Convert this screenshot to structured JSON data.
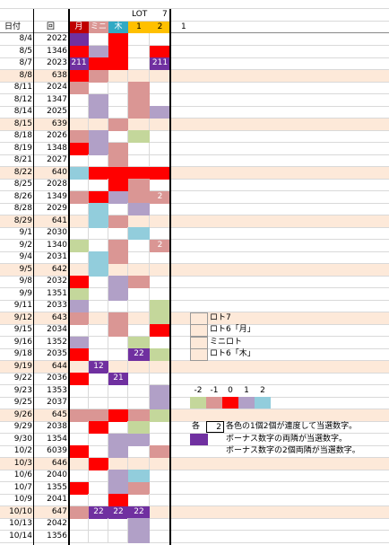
{
  "header": {
    "lot": "LOT",
    "seven": "7",
    "cols": [
      "日付",
      "回",
      "月",
      "ミニ",
      "木",
      "1",
      "2",
      "1"
    ]
  },
  "rows": [
    {
      "date": "8/4",
      "num": "2022",
      "cells": [
        "#7030a0",
        null,
        "#ff0000",
        null,
        null
      ]
    },
    {
      "date": "8/5",
      "num": "1346",
      "cells": [
        "#ff0000",
        "#b1a0c7",
        "#ff0000",
        null,
        "#ff0000"
      ]
    },
    {
      "date": "8/7",
      "num": "2023",
      "cells": [
        {
          "color": "#7030a0",
          "text": "211"
        },
        "#ff0000",
        "#ff0000",
        null,
        {
          "color": "#7030a0",
          "text": "211"
        }
      ]
    },
    {
      "date": "8/8",
      "num": "638",
      "bg": "#fde9d9",
      "cells": [
        "#ff0000",
        "#da9694",
        null,
        null,
        null
      ]
    },
    {
      "date": "8/11",
      "num": "2024",
      "cells": [
        "#da9694",
        null,
        null,
        "#da9694",
        null
      ]
    },
    {
      "date": "8/12",
      "num": "1347",
      "cells": [
        null,
        "#b1a0c7",
        null,
        "#da9694",
        null
      ]
    },
    {
      "date": "8/14",
      "num": "2025",
      "cells": [
        null,
        "#b1a0c7",
        null,
        "#da9694",
        "#b1a0c7"
      ]
    },
    {
      "date": "8/15",
      "num": "639",
      "bg": "#fde9d9",
      "cells": [
        null,
        null,
        "#da9694",
        null,
        null
      ]
    },
    {
      "date": "8/18",
      "num": "2026",
      "cells": [
        "#da9694",
        "#b1a0c7",
        null,
        "#c4d79b",
        null
      ]
    },
    {
      "date": "8/19",
      "num": "1348",
      "cells": [
        "#ff0000",
        "#b1a0c7",
        "#da9694",
        null,
        null
      ]
    },
    {
      "date": "8/21",
      "num": "2027",
      "cells": [
        null,
        null,
        "#da9694",
        null,
        null
      ]
    },
    {
      "date": "8/22",
      "num": "640",
      "bg": "#fde9d9",
      "cells": [
        "#92cddc",
        "#ff0000",
        "#ff0000",
        "#ff0000",
        "#ff0000"
      ]
    },
    {
      "date": "8/25",
      "num": "2028",
      "cells": [
        null,
        null,
        "#ff0000",
        "#da9694",
        null
      ]
    },
    {
      "date": "8/26",
      "num": "1349",
      "cells": [
        "#da9694",
        "#ff0000",
        "#b1a0c7",
        "#da9694",
        {
          "color": "#da9694",
          "text": "2"
        }
      ]
    },
    {
      "date": "8/28",
      "num": "2029",
      "cells": [
        null,
        "#92cddc",
        null,
        "#b1a0c7",
        null
      ]
    },
    {
      "date": "8/29",
      "num": "641",
      "bg": "#fde9d9",
      "cells": [
        null,
        "#92cddc",
        "#da9694",
        null,
        null
      ]
    },
    {
      "date": "9/1",
      "num": "2030",
      "cells": [
        null,
        null,
        null,
        "#92cddc",
        null
      ]
    },
    {
      "date": "9/2",
      "num": "1340",
      "cells": [
        "#c4d79b",
        null,
        "#da9694",
        null,
        {
          "color": "#da9694",
          "text": "2"
        }
      ]
    },
    {
      "date": "9/4",
      "num": "2031",
      "cells": [
        null,
        "#92cddc",
        "#da9694",
        null,
        null
      ]
    },
    {
      "date": "9/5",
      "num": "642",
      "bg": "#fde9d9",
      "cells": [
        null,
        "#92cddc",
        null,
        null,
        null
      ]
    },
    {
      "date": "9/8",
      "num": "2032",
      "cells": [
        "#ff0000",
        null,
        "#b1a0c7",
        "#da9694",
        null
      ]
    },
    {
      "date": "9/9",
      "num": "1351",
      "cells": [
        "#c4d79b",
        null,
        "#b1a0c7",
        null,
        null
      ]
    },
    {
      "date": "9/11",
      "num": "2033",
      "cells": [
        "#b1a0c7",
        null,
        null,
        null,
        "#c4d79b"
      ]
    },
    {
      "date": "9/12",
      "num": "643",
      "bg": "#fde9d9",
      "cells": [
        "#da9694",
        null,
        "#da9694",
        null,
        "#c4d79b"
      ]
    },
    {
      "date": "9/15",
      "num": "2034",
      "cells": [
        null,
        null,
        "#da9694",
        null,
        "#ff0000"
      ]
    },
    {
      "date": "9/16",
      "num": "1352",
      "cells": [
        "#b1a0c7",
        null,
        null,
        "#c4d79b",
        null
      ]
    },
    {
      "date": "9/18",
      "num": "2035",
      "cells": [
        "#ff0000",
        null,
        null,
        {
          "color": "#7030a0",
          "text": "22"
        },
        "#c4d79b"
      ]
    },
    {
      "date": "9/19",
      "num": "644",
      "bg": "#fde9d9",
      "cells": [
        null,
        {
          "color": "#7030a0",
          "text": "12"
        },
        null,
        null,
        null
      ]
    },
    {
      "date": "9/22",
      "num": "2036",
      "cells": [
        "#ff0000",
        null,
        {
          "color": "#7030a0",
          "text": "21"
        },
        null,
        null
      ]
    },
    {
      "date": "9/23",
      "num": "1353",
      "cells": [
        null,
        null,
        null,
        null,
        "#b1a0c7"
      ]
    },
    {
      "date": "9/25",
      "num": "2037",
      "cells": [
        null,
        null,
        null,
        null,
        "#b1a0c7"
      ]
    },
    {
      "date": "9/26",
      "num": "645",
      "bg": "#fde9d9",
      "cells": [
        "#da9694",
        "#da9694",
        "#ff0000",
        "#da9694",
        "#c4d79b"
      ]
    },
    {
      "date": "9/29",
      "num": "2038",
      "cells": [
        null,
        "#ff0000",
        null,
        "#c4d79b",
        null
      ]
    },
    {
      "date": "9/30",
      "num": "1354",
      "cells": [
        null,
        null,
        "#b1a0c7",
        "#b1a0c7",
        null
      ]
    },
    {
      "date": "10/2",
      "num": "6039",
      "cells": [
        "#ff0000",
        null,
        "#b1a0c7",
        null,
        "#da9694"
      ]
    },
    {
      "date": "10/3",
      "num": "646",
      "bg": "#fde9d9",
      "cells": [
        null,
        "#ff0000",
        null,
        null,
        null
      ]
    },
    {
      "date": "10/6",
      "num": "2040",
      "cells": [
        null,
        null,
        "#b1a0c7",
        "#92cddc",
        null
      ]
    },
    {
      "date": "10/7",
      "num": "1355",
      "cells": [
        "#ff0000",
        null,
        "#b1a0c7",
        "#da9694",
        null
      ]
    },
    {
      "date": "10/9",
      "num": "2041",
      "cells": [
        null,
        null,
        "#ff0000",
        null,
        null
      ]
    },
    {
      "date": "10/10",
      "num": "647",
      "bg": "#fde9d9",
      "cells": [
        "#da9694",
        {
          "color": "#7030a0",
          "text": "22"
        },
        {
          "color": "#7030a0",
          "text": "22"
        },
        {
          "color": "#7030a0",
          "text": "22"
        },
        null
      ]
    },
    {
      "date": "10/13",
      "num": "2042",
      "cells": [
        null,
        null,
        null,
        "#b1a0c7",
        null
      ]
    },
    {
      "date": "10/14",
      "num": "1356",
      "cells": [
        null,
        null,
        null,
        "#b1a0c7",
        null
      ]
    }
  ],
  "legend": {
    "games": [
      "ロト7",
      "ロト6「月」",
      "ミニロト",
      "ロト6「木」"
    ],
    "scale": [
      {
        "label": "-2",
        "color": "#c4d79b"
      },
      {
        "label": "-1",
        "color": "#da9694"
      },
      {
        "label": "0",
        "color": "#ff0000"
      },
      {
        "label": "1",
        "color": "#b1a0c7"
      },
      {
        "label": "2",
        "color": "#92cddc"
      }
    ]
  },
  "notes": {
    "each": "各",
    "box": "2",
    "bonus_color": "#7030a0",
    "lines": [
      "各色の1個2個が連度して当選数字。",
      "ボーナス数字の両隣が当選数字。",
      "ボーナス数字の2個両隣が当選数字。"
    ]
  }
}
